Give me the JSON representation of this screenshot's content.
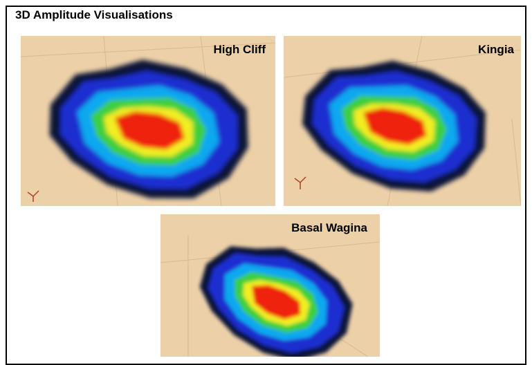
{
  "header": {
    "title": "3D Amplitude Visualisations"
  },
  "panels": [
    {
      "label": "High Cliff"
    },
    {
      "label": "Kingia"
    },
    {
      "label": "Basal Wagina"
    }
  ]
}
